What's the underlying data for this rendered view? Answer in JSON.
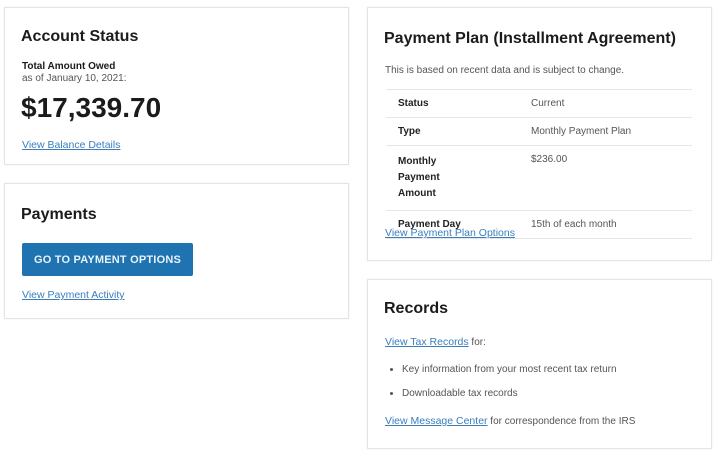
{
  "account_status": {
    "title": "Account Status",
    "label": "Total Amount Owed",
    "as_of": "as of January 10, 2021:",
    "amount": "$17,339.70",
    "link": "View Balance Details"
  },
  "payments": {
    "title": "Payments",
    "button": "GO TO PAYMENT OPTIONS",
    "link": "View Payment Activity"
  },
  "payment_plan": {
    "title": "Payment Plan (Installment Agreement)",
    "note": "This is based on recent data and is subject to change.",
    "rows": [
      {
        "label": "Status",
        "value": "Current"
      },
      {
        "label": "Type",
        "value": "Monthly Payment Plan"
      },
      {
        "label": "Monthly Payment Amount",
        "value": "$236.00"
      },
      {
        "label": "Payment Day",
        "value": "15th of each month"
      }
    ],
    "link": "View Payment Plan Options"
  },
  "records": {
    "title": "Records",
    "tax_link": "View Tax Records",
    "tax_suffix": " for:",
    "items": [
      "Key information from your most recent tax return",
      "Downloadable tax records"
    ],
    "message_link": "View Message Center",
    "message_suffix": " for correspondence from the IRS"
  },
  "colors": {
    "accent": "#1f73b0",
    "link": "#3a7dbd"
  }
}
